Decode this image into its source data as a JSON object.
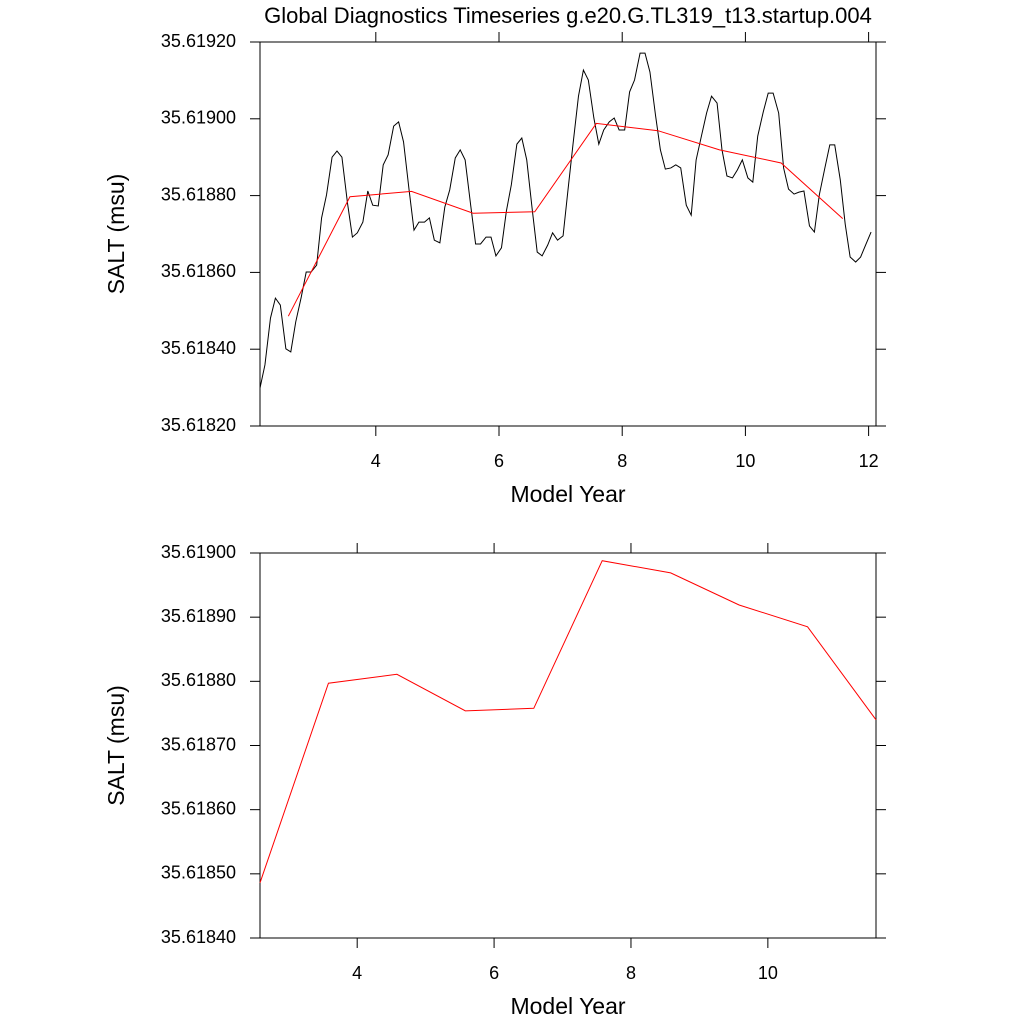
{
  "chart_data": [
    {
      "type": "line",
      "title": "Global Diagnostics Timeseries g.e20.G.TL319_t13.startup.004",
      "x_label": "Model Year",
      "y_label": "SALT (msu)",
      "xlim": [
        2.12,
        12.12
      ],
      "xticks": [
        4,
        6,
        8,
        10,
        12
      ],
      "ylim": [
        35.6182,
        35.6192
      ],
      "yticks": [
        {
          "value": 35.6182,
          "label": "35.61820"
        },
        {
          "value": 35.6184,
          "label": "35.61840"
        },
        {
          "value": 35.6186,
          "label": "35.61860"
        },
        {
          "value": 35.6188,
          "label": "35.61880"
        },
        {
          "value": 35.619,
          "label": "35.61900"
        },
        {
          "value": 35.6192,
          "label": "35.61920"
        }
      ],
      "series": [
        {
          "color": "#000000",
          "x": [
            2.12,
            2.2,
            2.29,
            2.37,
            2.45,
            2.54,
            2.62,
            2.7,
            2.79,
            2.87,
            2.95,
            3.04,
            3.12,
            3.2,
            3.29,
            3.37,
            3.45,
            3.54,
            3.62,
            3.7,
            3.79,
            3.87,
            3.95,
            4.04,
            4.12,
            4.2,
            4.29,
            4.37,
            4.45,
            4.54,
            4.62,
            4.7,
            4.79,
            4.87,
            4.95,
            5.04,
            5.12,
            5.2,
            5.29,
            5.37,
            5.45,
            5.54,
            5.62,
            5.7,
            5.79,
            5.87,
            5.95,
            6.04,
            6.12,
            6.2,
            6.29,
            6.37,
            6.45,
            6.54,
            6.62,
            6.7,
            6.79,
            6.87,
            6.95,
            7.04,
            7.12,
            7.2,
            7.29,
            7.37,
            7.45,
            7.54,
            7.62,
            7.7,
            7.79,
            7.87,
            7.95,
            8.04,
            8.12,
            8.2,
            8.29,
            8.37,
            8.45,
            8.54,
            8.62,
            8.7,
            8.79,
            8.87,
            8.95,
            9.04,
            9.12,
            9.2,
            9.29,
            9.37,
            9.45,
            9.54,
            9.62,
            9.7,
            9.79,
            9.87,
            9.95,
            10.04,
            10.12,
            10.2,
            10.29,
            10.37,
            10.45,
            10.54,
            10.62,
            10.7,
            10.79,
            10.87,
            10.95,
            11.04,
            11.12,
            11.2,
            11.29,
            11.37,
            11.45,
            11.54,
            11.62,
            11.7,
            11.79,
            11.87,
            11.95,
            12.04
          ],
          "values": [
            35.618299,
            35.618359,
            35.618481,
            35.618533,
            35.618515,
            35.618401,
            35.618393,
            35.618471,
            35.618536,
            35.618601,
            35.618601,
            35.618619,
            35.618742,
            35.618802,
            35.6189,
            35.618916,
            35.6189,
            35.618781,
            35.618692,
            35.618703,
            35.618731,
            35.618812,
            35.618775,
            35.618773,
            35.61888,
            35.618906,
            35.618981,
            35.618992,
            35.61894,
            35.618815,
            35.61871,
            35.618731,
            35.618731,
            35.618742,
            35.618684,
            35.618677,
            35.61877,
            35.618815,
            35.618898,
            35.618919,
            35.618893,
            35.618775,
            35.618674,
            35.618674,
            35.618692,
            35.618692,
            35.618643,
            35.618664,
            35.61876,
            35.618828,
            35.618934,
            35.61895,
            35.618893,
            35.618763,
            35.618653,
            35.618643,
            35.618671,
            35.618703,
            35.618684,
            35.618695,
            35.618815,
            35.618932,
            35.619059,
            35.619127,
            35.619101,
            35.619002,
            35.618934,
            35.618971,
            35.618992,
            35.619002,
            35.618971,
            35.618971,
            35.61907,
            35.619101,
            35.619171,
            35.619171,
            35.619122,
            35.61901,
            35.618919,
            35.618869,
            35.618872,
            35.61888,
            35.618872,
            35.618775,
            35.618749,
            35.618893,
            35.618958,
            35.619015,
            35.619059,
            35.619041,
            35.618919,
            35.618851,
            35.618846,
            35.618867,
            35.618893,
            35.618846,
            35.618835,
            35.618955,
            35.619018,
            35.619067,
            35.619067,
            35.619015,
            35.618872,
            35.618817,
            35.618804,
            35.618809,
            35.618812,
            35.618721,
            35.618705,
            35.618802,
            35.618872,
            35.618932,
            35.618932,
            35.618841,
            35.618726,
            35.61864,
            35.618627,
            35.61864,
            35.618671,
            35.618705
          ]
        },
        {
          "color": "#ff0000",
          "x": [
            2.58,
            3.58,
            4.58,
            5.58,
            6.58,
            7.58,
            8.58,
            9.58,
            10.58,
            11.58
          ],
          "values": [
            35.618486,
            35.618797,
            35.618811,
            35.618754,
            35.618758,
            35.618988,
            35.618969,
            35.618919,
            35.618885,
            35.61874
          ]
        }
      ]
    },
    {
      "type": "line",
      "x_label": "Model Year",
      "y_label": "SALT (msu)",
      "xlim": [
        2.58,
        11.58
      ],
      "xticks": [
        4,
        6,
        8,
        10
      ],
      "ylim": [
        35.6184,
        35.619
      ],
      "yticks": [
        {
          "value": 35.6184,
          "label": "35.61840"
        },
        {
          "value": 35.6185,
          "label": "35.61850"
        },
        {
          "value": 35.6186,
          "label": "35.61860"
        },
        {
          "value": 35.6187,
          "label": "35.61870"
        },
        {
          "value": 35.6188,
          "label": "35.61880"
        },
        {
          "value": 35.6189,
          "label": "35.61890"
        },
        {
          "value": 35.619,
          "label": "35.61900"
        }
      ],
      "series": [
        {
          "color": "#ff0000",
          "x": [
            2.58,
            3.58,
            4.58,
            5.58,
            6.58,
            7.58,
            8.58,
            9.58,
            10.58,
            11.58
          ],
          "values": [
            35.618486,
            35.618797,
            35.618811,
            35.618754,
            35.618758,
            35.618988,
            35.618969,
            35.618919,
            35.618885,
            35.61874
          ]
        }
      ]
    }
  ]
}
